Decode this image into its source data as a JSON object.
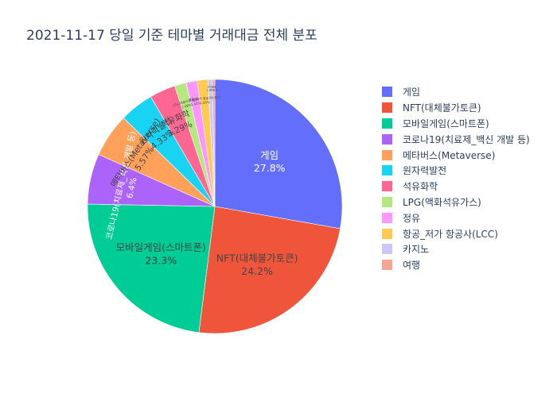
{
  "chart_data": {
    "type": "pie",
    "title": "2021-11-17 당일 기준 테마별 거래대금 전체 분포",
    "slices": [
      {
        "label": "게임",
        "percent": 27.8,
        "percent_text": "27.8%",
        "color": "#636efa"
      },
      {
        "label": "NFT(대체불가토큰)",
        "percent": 24.2,
        "percent_text": "24.2%",
        "color": "#ef553b"
      },
      {
        "label": "모바일게임(스마트폰)",
        "percent": 23.3,
        "percent_text": "23.3%",
        "color": "#00cc96"
      },
      {
        "label": "코로나19(치료제_백신 개발 등)",
        "percent": 6.4,
        "percent_text": "6.4%",
        "color": "#ab63fa"
      },
      {
        "label": "메타버스(Metaverse)",
        "percent": 5.57,
        "percent_text": "5.57%",
        "color": "#ffa15a"
      },
      {
        "label": "원자력발전",
        "percent": 4.33,
        "percent_text": "4.33%",
        "color": "#19d3f3"
      },
      {
        "label": "석유화학",
        "percent": 3.29,
        "percent_text": "3.29%",
        "color": "#ff6692"
      },
      {
        "label": "LPG(액화석유가스)",
        "percent": 1.48,
        "percent_text": "1.48%",
        "color": "#b6e880"
      },
      {
        "label": "정유",
        "percent": 1.42,
        "percent_text": "1.42%",
        "color": "#ff97ff"
      },
      {
        "label": "항공_저가 항공사(LCC)",
        "percent": 1.35,
        "percent_text": "1.35%",
        "color": "#fecb52"
      },
      {
        "label": "카지노",
        "percent": 0.55,
        "percent_text": "0.55%",
        "color": "#c8c8f8"
      },
      {
        "label": "여행",
        "percent": 0.31,
        "percent_text": "0.31%",
        "color": "#f4a593"
      }
    ],
    "legend_position": "right"
  }
}
